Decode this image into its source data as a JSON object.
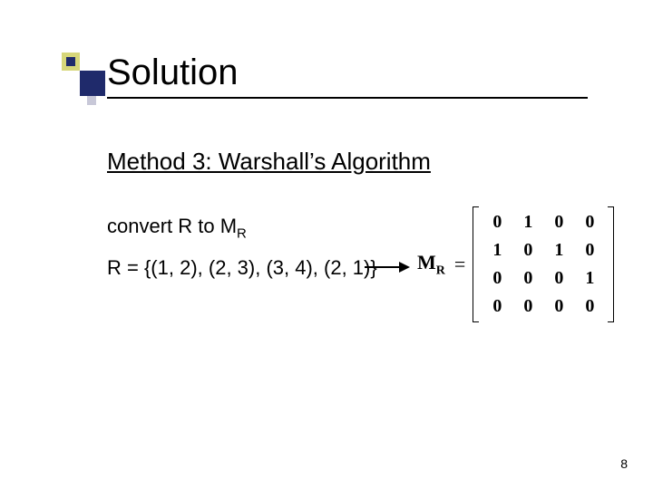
{
  "title": "Solution",
  "subtitle": "Method 3: Warshall’s Algorithm",
  "body1_pre": "convert R to M",
  "body1_sub": "R",
  "body2": "R = {(1, 2), (2, 3), (3, 4), (2, 1)}",
  "matrix_label_main": "M",
  "matrix_label_sub": "R",
  "matrix_eq": "=",
  "matrix": {
    "rows": [
      [
        "0",
        "1",
        "0",
        "0"
      ],
      [
        "1",
        "0",
        "1",
        "0"
      ],
      [
        "0",
        "0",
        "0",
        "1"
      ],
      [
        "0",
        "0",
        "0",
        "0"
      ]
    ]
  },
  "page_number": "8",
  "colors": {
    "accent_yellow": "#d6d67a",
    "accent_navy": "#1f2a6b",
    "accent_gray": "#c8c8d8",
    "text": "#000000",
    "background": "#ffffff"
  },
  "typography": {
    "title_fontsize": 40,
    "subtitle_fontsize": 26,
    "body_fontsize": 22,
    "matrix_fontsize": 20,
    "pagenum_fontsize": 14
  }
}
